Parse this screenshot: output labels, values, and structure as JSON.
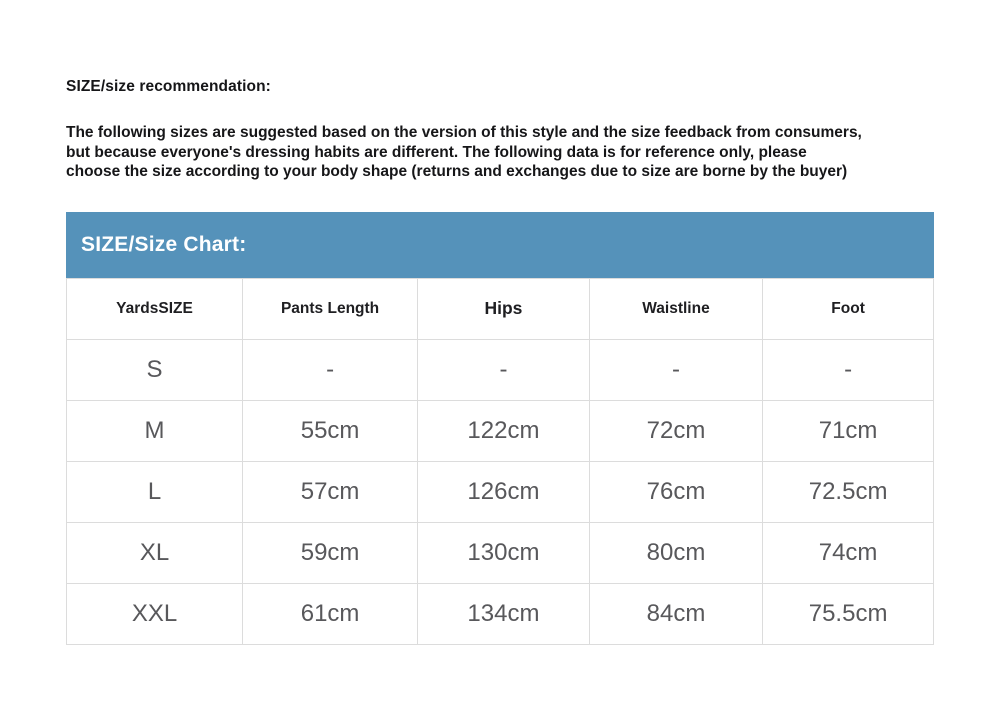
{
  "page": {
    "heading": "SIZE/size recommendation:",
    "intro_lines": [
      "The following sizes are suggested based on the version of this style and the size feedback from consumers,",
      "but because everyone's dressing habits are different. The following data is for reference only, please",
      "choose the size according to your body shape (returns and exchanges due to size are borne by the buyer)"
    ]
  },
  "size_chart": {
    "title": "SIZE/Size Chart:",
    "columns": [
      "YardsSIZE",
      "Pants Length",
      "Hips",
      "Waistline",
      "Foot"
    ],
    "rows": [
      {
        "size": "S",
        "pants_length": "-",
        "hips": "-",
        "waistline": "-",
        "foot": "-"
      },
      {
        "size": "M",
        "pants_length": "55cm",
        "hips": "122cm",
        "waistline": "72cm",
        "foot": "71cm"
      },
      {
        "size": "L",
        "pants_length": "57cm",
        "hips": "126cm",
        "waistline": "76cm",
        "foot": "72.5cm"
      },
      {
        "size": "XL",
        "pants_length": "59cm",
        "hips": "130cm",
        "waistline": "80cm",
        "foot": "74cm"
      },
      {
        "size": "XXL",
        "pants_length": "61cm",
        "hips": "134cm",
        "waistline": "84cm",
        "foot": "75.5cm"
      }
    ],
    "colors": {
      "bar_background": "#5592ba",
      "bar_text": "#ffffff",
      "grid_border": "#dcdcdc",
      "data_text": "#58585b",
      "heading_text": "#161618"
    }
  }
}
